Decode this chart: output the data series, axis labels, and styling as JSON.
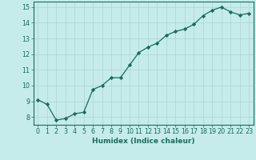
{
  "x": [
    0,
    1,
    2,
    3,
    4,
    5,
    6,
    7,
    8,
    9,
    10,
    11,
    12,
    13,
    14,
    15,
    16,
    17,
    18,
    19,
    20,
    21,
    22,
    23
  ],
  "y": [
    9.1,
    8.8,
    7.8,
    7.9,
    8.2,
    8.3,
    9.75,
    10.0,
    10.5,
    10.5,
    11.3,
    12.1,
    12.45,
    12.7,
    13.2,
    13.45,
    13.6,
    13.9,
    14.45,
    14.8,
    15.0,
    14.7,
    14.5,
    14.6
  ],
  "line_color": "#1a6b5a",
  "marker": "D",
  "marker_size": 2.2,
  "bg_color": "#c5ecea",
  "grid_color": "#b0d8d5",
  "xlabel": "Humidex (Indice chaleur)",
  "ylim": [
    7.5,
    15.35
  ],
  "xlim": [
    -0.5,
    23.5
  ],
  "yticks": [
    8,
    9,
    10,
    11,
    12,
    13,
    14,
    15
  ],
  "xticks": [
    0,
    1,
    2,
    3,
    4,
    5,
    6,
    7,
    8,
    9,
    10,
    11,
    12,
    13,
    14,
    15,
    16,
    17,
    18,
    19,
    20,
    21,
    22,
    23
  ],
  "tick_color": "#1a6b5a",
  "label_fontsize": 6.5,
  "tick_fontsize": 5.8
}
